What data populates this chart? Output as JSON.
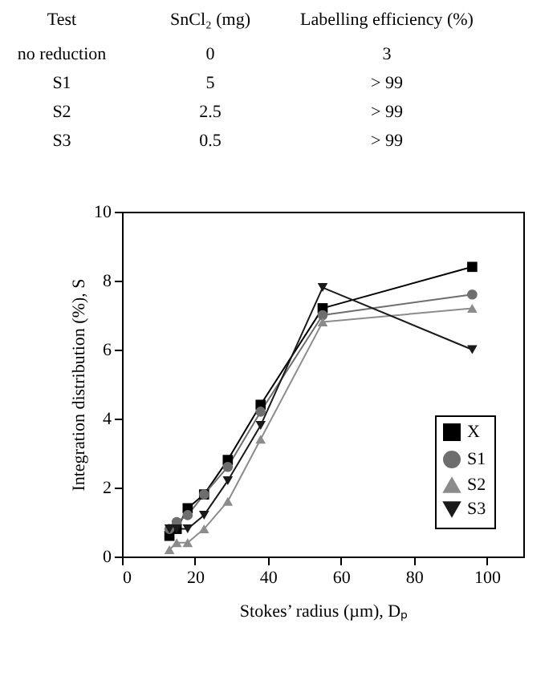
{
  "chart_data": [
    {
      "type": "heatmap",
      "ylabel": "Test",
      "categories": [
        "SnCl₂ (mg)",
        "Labelling efficiency (%)"
      ],
      "y_categories": [
        "no reduction",
        "S1",
        "S2",
        "S3"
      ],
      "cells": [
        [
          null,
          null
        ],
        [
          null,
          null
        ],
        [
          null,
          null
        ],
        [
          null,
          null
        ]
      ],
      "cell_labels": [
        [
          "0",
          "3"
        ],
        [
          "5",
          "> 99"
        ],
        [
          "2.5",
          "> 99"
        ],
        [
          "0.5",
          "> 99"
        ]
      ]
    },
    {
      "type": "line",
      "xlabel": "Stokes’ radius (µm), Dₚ",
      "ylabel": "Integration distribution (%), S",
      "x": [
        13,
        15,
        18,
        22.5,
        29,
        38,
        55,
        96
      ],
      "series": [
        {
          "name": "X",
          "color": "#000000",
          "marker": "square",
          "values": [
            0.6,
            0.8,
            1.4,
            1.8,
            2.8,
            4.4,
            7.2,
            8.4
          ]
        },
        {
          "name": "S1",
          "color": "#6e6e6e",
          "marker": "circle",
          "values": [
            0.8,
            1.0,
            1.2,
            1.8,
            2.6,
            4.2,
            7.0,
            7.6
          ]
        },
        {
          "name": "S2",
          "color": "#8c8c8c",
          "marker": "triangle",
          "values": [
            0.2,
            0.4,
            0.4,
            0.8,
            1.6,
            3.4,
            6.8,
            7.2
          ]
        },
        {
          "name": "S3",
          "color": "#1a1a1a",
          "marker": "triangle-down",
          "values": [
            0.8,
            0.8,
            0.8,
            1.2,
            2.2,
            3.8,
            7.8,
            6.0
          ]
        }
      ],
      "xlim": [
        0,
        110
      ],
      "xticks": [
        0,
        20,
        40,
        60,
        80,
        100
      ],
      "ylim": [
        0,
        10
      ],
      "yticks": [
        0,
        2,
        4,
        6,
        8,
        10
      ],
      "grid": false,
      "legend": "bottom right",
      "line_style": "solid"
    }
  ]
}
